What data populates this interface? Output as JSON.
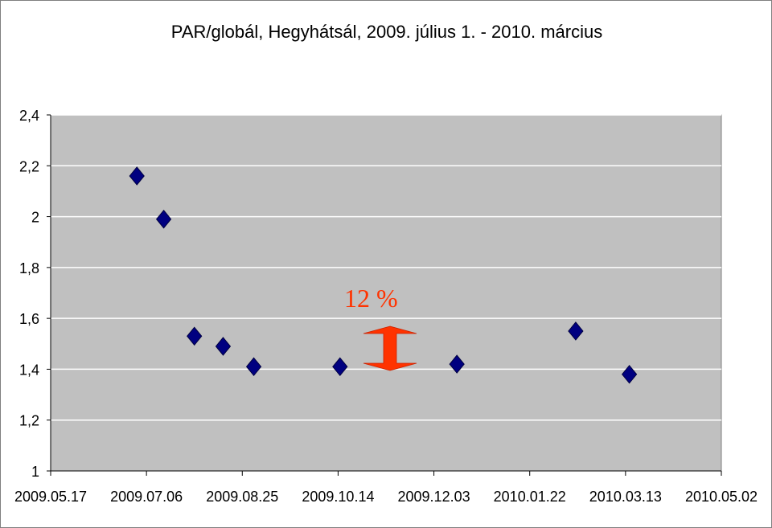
{
  "chart_data": {
    "type": "scatter",
    "title": "PAR/globál, Hegyhátsál, 2009. július 1. -  2010. március",
    "xlabel": "",
    "ylabel": "",
    "x_ticks": [
      "2009.05.17",
      "2009.07.06",
      "2009.08.25",
      "2009.10.14",
      "2009.12.03",
      "2010.01.22",
      "2010.03.13",
      "2010.05.02"
    ],
    "xlim": [
      "2009.05.17",
      "2010.05.02"
    ],
    "y_ticks": [
      "1",
      "1,2",
      "1,4",
      "1,6",
      "1,8",
      "2",
      "2,2",
      "2,4"
    ],
    "ylim": [
      1,
      2.4
    ],
    "grid": "horizontal",
    "legend": "none",
    "series": [
      {
        "marker": "diamond",
        "color": "#000080",
        "points": [
          {
            "x": "2009.07.01",
            "y": 2.16
          },
          {
            "x": "2009.07.15",
            "y": 1.99
          },
          {
            "x": "2009.07.31",
            "y": 1.53
          },
          {
            "x": "2009.08.15",
            "y": 1.49
          },
          {
            "x": "2009.08.31",
            "y": 1.41
          },
          {
            "x": "2009.10.15",
            "y": 1.41
          },
          {
            "x": "2009.12.15",
            "y": 1.42
          },
          {
            "x": "2010.02.15",
            "y": 1.55
          },
          {
            "x": "2010.03.15",
            "y": 1.38
          }
        ]
      }
    ],
    "annotation": {
      "text": "12   %",
      "color": "#ff3300",
      "marker": "double-arrow"
    },
    "plot_bg": "#c0c0c0",
    "grid_color": "#ffffff"
  }
}
